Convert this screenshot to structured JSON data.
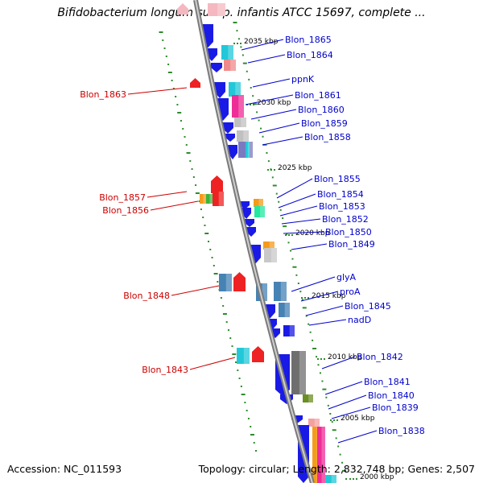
{
  "title": "Bifidobacterium longum subsp. infantis ATCC 15697, complete ...",
  "accession": "Accession: NC_011593",
  "topology": "Topology: circular; Length: 2,832,748 bp; Genes: 2,507",
  "colors": {
    "backbone": "#888888",
    "forward_label": "#0000cc",
    "reverse_label": "#cc0000",
    "dots": "#2e8b2e"
  },
  "ticks": [
    "2035 kbp",
    "2030 kbp",
    "2025 kbp",
    "2020 kbp",
    "2015 kbp",
    "2010 kbp",
    "2005 kbp",
    "2000 kbp"
  ],
  "right_labels": [
    "Blon_1865",
    "Blon_1864",
    "ppnK",
    "Blon_1861",
    "Blon_1860",
    "Blon_1859",
    "Blon_1858",
    "Blon_1855",
    "Blon_1854",
    "Blon_1853",
    "Blon_1852",
    "Blon_1850",
    "Blon_1849",
    "glyA",
    "proA",
    "Blon_1845",
    "nadD",
    "Blon_1842",
    "Blon_1841",
    "Blon_1840",
    "Blon_1839",
    "Blon_1838"
  ],
  "left_labels": [
    "Blon_1863",
    "Blon_1857",
    "Blon_1856",
    "Blon_1848",
    "Blon_1843"
  ]
}
